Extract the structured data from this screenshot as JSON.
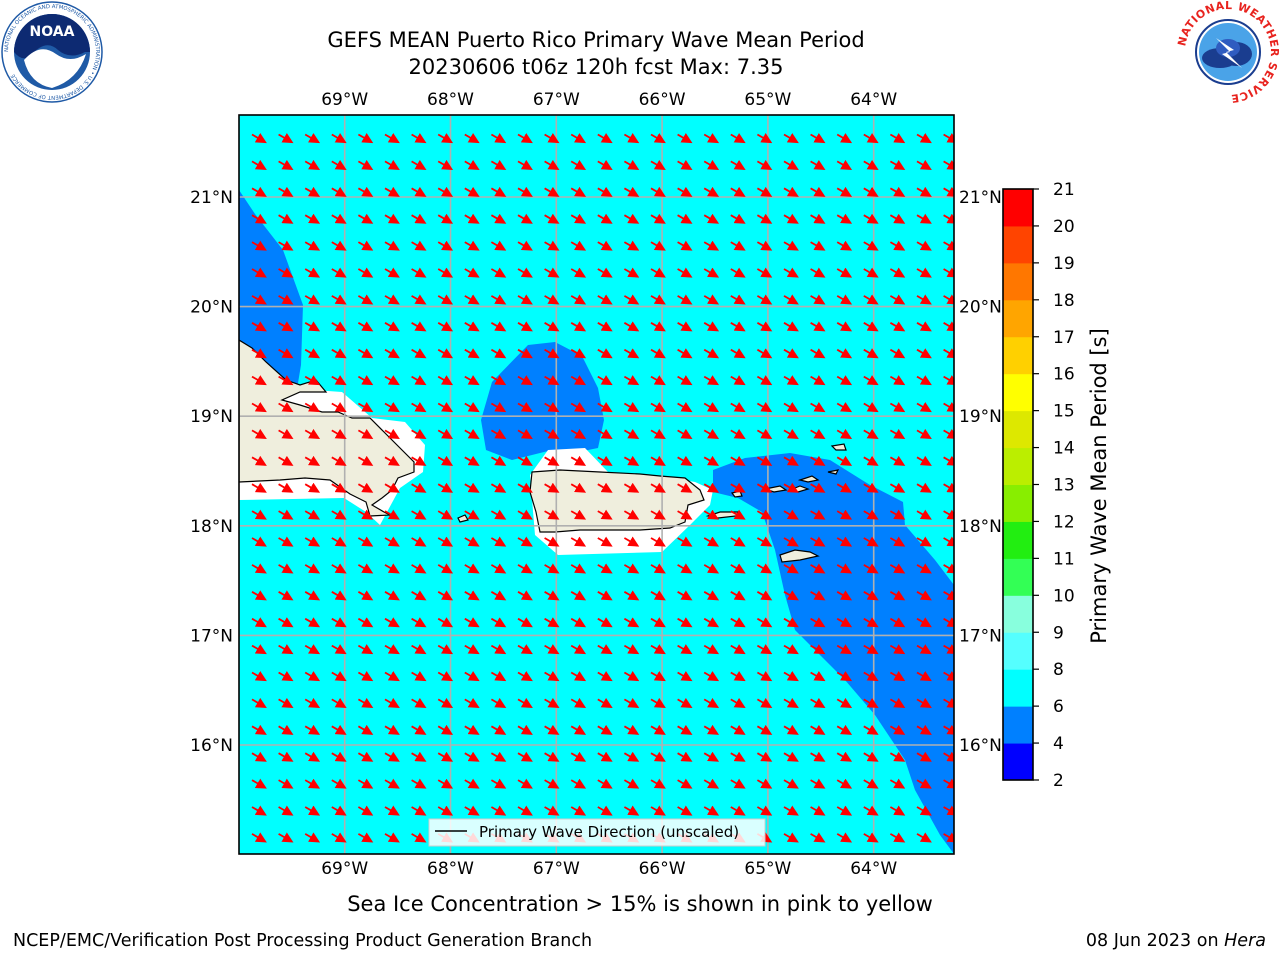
{
  "title_line1": "GEFS MEAN Puerto Rico Primary Wave Mean Period",
  "title_line2": "20230606 t06z 120h fcst   Max: 7.35",
  "noaa_logo": {
    "text": "NOAA",
    "ring_text": "NATIONAL OCEANIC AND ATMOSPHERIC ADMINISTRATION • U.S. DEPARTMENT OF COMMERCE",
    "color": "#1f5aa6"
  },
  "nws_logo": {
    "ring_text": "NATIONAL WEATHER SERVICE",
    "color": "#e8231e"
  },
  "map": {
    "lon_labels": [
      "69°W",
      "68°W",
      "67°W",
      "66°W",
      "65°W",
      "64°W"
    ],
    "lat_labels": [
      "21°N",
      "20°N",
      "19°N",
      "18°N",
      "17°N",
      "16°N"
    ],
    "lon_values": [
      -69,
      -68,
      -67,
      -66,
      -65,
      -64
    ],
    "lat_values": [
      21,
      20,
      19,
      18,
      17,
      16
    ],
    "background_color": "#00ffff",
    "zone_4_6_color": "#0080ff",
    "land_color": "#efeedd",
    "arrow_color": "#ff0000",
    "legend_label": "Primary Wave Direction (unscaled)"
  },
  "colorbar": {
    "label": "Primary Wave Mean Period [s]",
    "ticks": [
      "2",
      "4",
      "6",
      "8",
      "9",
      "10",
      "11",
      "12",
      "13",
      "14",
      "15",
      "16",
      "17",
      "18",
      "19",
      "20",
      "21"
    ],
    "colors": [
      "#0000ff",
      "#0080ff",
      "#00ffff",
      "#55ffff",
      "#88ffdd",
      "#33ff55",
      "#22ee11",
      "#88ee00",
      "#bbee00",
      "#dde800",
      "#ffff00",
      "#ffd000",
      "#ffa500",
      "#ff7700",
      "#ff4400",
      "#ff0000"
    ]
  },
  "subtitle": "Sea Ice Concentration > 15% is shown in pink to yellow",
  "footer_left": "NCEP/EMC/Verification Post Processing Product Generation Branch",
  "footer_date": "08 Jun 2023 on",
  "footer_machine": "Hera"
}
